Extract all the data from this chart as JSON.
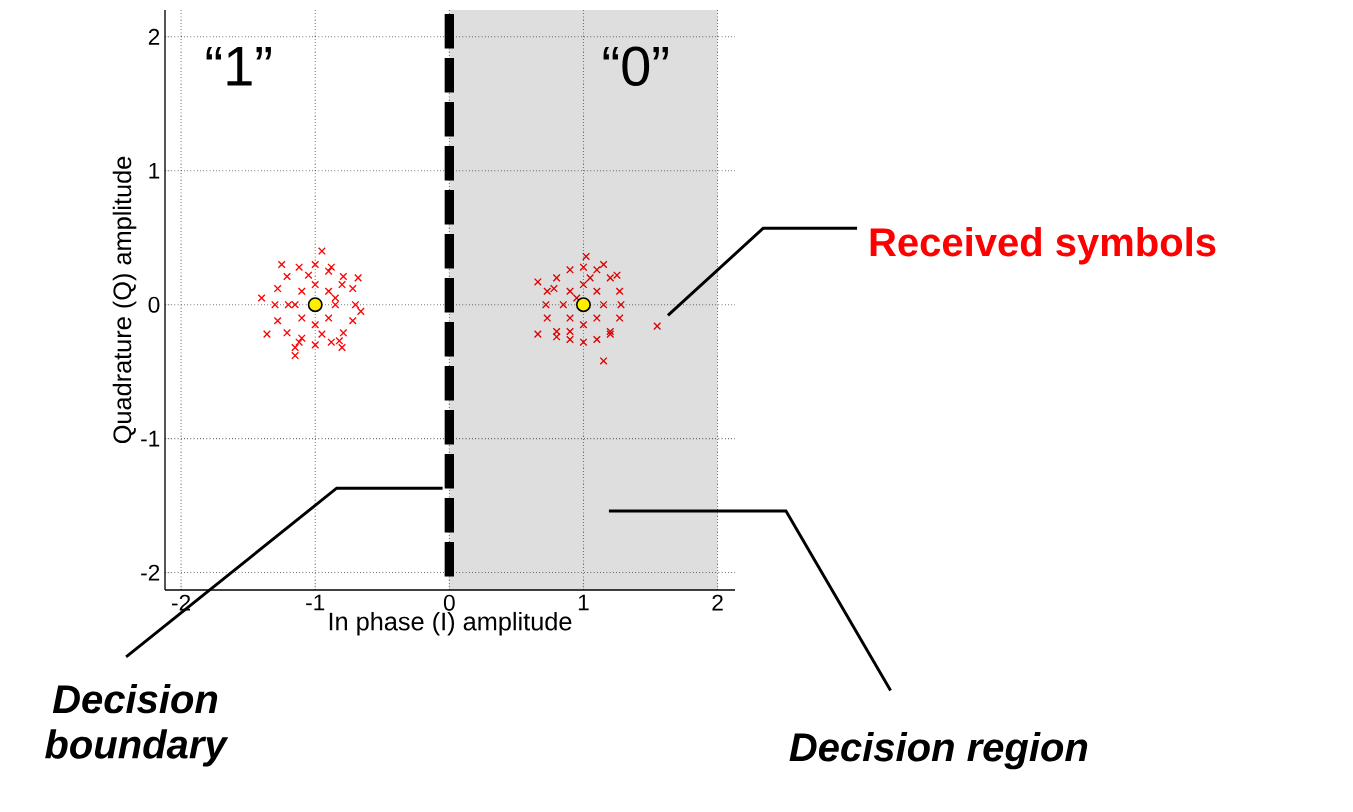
{
  "chart_data": {
    "type": "scatter",
    "xlabel": "In phase (I) amplitude",
    "ylabel": "Quadrature (Q) amplitude",
    "xlim": [
      -2.12,
      2.13
    ],
    "ylim": [
      -2.13,
      2.2
    ],
    "xticks": [
      -2,
      -1,
      0,
      1,
      2
    ],
    "yticks": [
      -2,
      -1,
      0,
      1,
      2
    ],
    "grid": true,
    "series": [
      {
        "color": "#ff0000",
        "marker": "cross",
        "x": [
          -0.85,
          -1.15,
          -1,
          -1,
          -0.9,
          -1.1,
          -0.9,
          -1.1,
          -0.7,
          -1.3,
          -1,
          -1,
          -0.79,
          -1.21,
          -0.79,
          -1.21,
          -0.72,
          -1.28,
          -0.72,
          -1.28,
          -0.88,
          -1.12,
          -0.88,
          -1.12,
          -0.95,
          -1.36,
          -0.68,
          -1.15,
          -0.8,
          -1.4,
          -0.66,
          -1.25,
          -0.85,
          -1.05,
          -0.95,
          -1.2,
          -0.8,
          -1.1,
          -0.9,
          -1.15,
          -0.82
        ],
        "values": [
          0,
          0,
          0.15,
          -0.15,
          0.1,
          0.1,
          -0.1,
          -0.1,
          0,
          0,
          0.3,
          -0.3,
          0.21,
          0.21,
          -0.21,
          -0.21,
          0.12,
          0.12,
          -0.12,
          -0.12,
          0.28,
          0.28,
          -0.28,
          -0.28,
          0.4,
          -0.22,
          0.2,
          -0.38,
          -0.32,
          0.05,
          -0.05,
          0.3,
          0.05,
          0.22,
          -0.22,
          0,
          0.15,
          -0.25,
          0.25,
          -0.32,
          -0.27
        ]
      },
      {
        "color": "#dd0000",
        "marker": "cross",
        "x": [
          1.15,
          0.85,
          1,
          1,
          1.1,
          0.9,
          1.1,
          0.9,
          1.28,
          0.72,
          1,
          1,
          1.2,
          0.8,
          1.2,
          0.8,
          1.27,
          0.73,
          1.27,
          0.73,
          1.1,
          0.9,
          1.1,
          0.9,
          1.02,
          0.66,
          0.66,
          1.55,
          1.15,
          1.2,
          0.8,
          1.15,
          0.95,
          1.05,
          0.9,
          1.25,
          0.78
        ],
        "values": [
          0,
          0,
          0.15,
          -0.15,
          0.1,
          0.1,
          -0.1,
          -0.1,
          0,
          0,
          0.28,
          -0.28,
          0.2,
          0.2,
          -0.2,
          -0.2,
          0.1,
          0.1,
          -0.1,
          -0.1,
          0.26,
          0.26,
          -0.26,
          -0.26,
          0.36,
          0.17,
          -0.22,
          -0.16,
          -0.42,
          -0.22,
          -0.24,
          0.3,
          0.05,
          0.2,
          -0.2,
          0.22,
          0.12
        ]
      },
      {
        "color": "#ffee00",
        "marker": "circle",
        "x": [
          -1,
          1
        ],
        "values": [
          0,
          0
        ]
      }
    ],
    "ref_lines": [
      {
        "axis": "x",
        "value": 0,
        "label": "Decision boundary",
        "color": "#000000",
        "line_style": "dashed"
      }
    ],
    "bands": [
      {
        "axis": "x",
        "from": 0,
        "to": 2,
        "label": "Decision region",
        "color": "#dedede"
      }
    ],
    "annotations": [
      "“1”",
      "“0”",
      "Received symbols"
    ]
  }
}
